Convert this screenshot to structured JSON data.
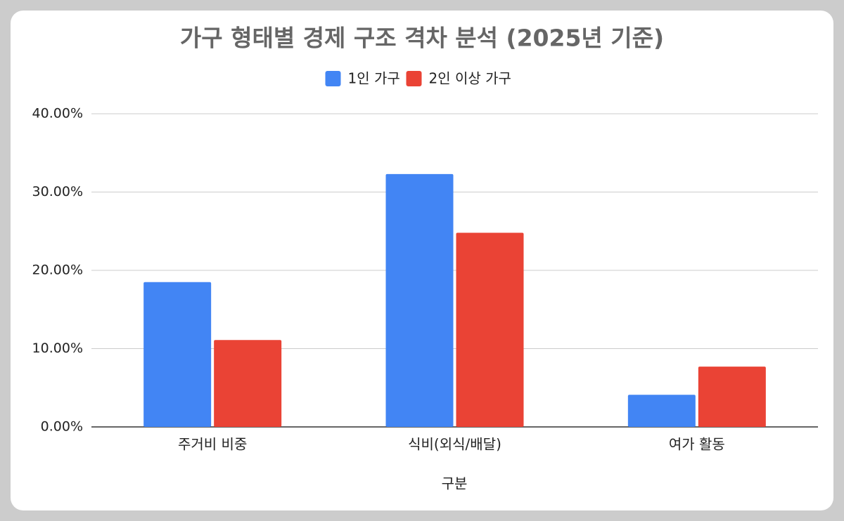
{
  "chart_data": {
    "type": "bar",
    "title": "가구 형태별 경제 구조 격차 분석 (2025년 기준)",
    "x_label": "구분",
    "categories": [
      "주거비 비중",
      "식비(외식/배달)",
      "여가 활동"
    ],
    "series": [
      {
        "name": "1인 가구",
        "color": "#4285f4",
        "values": [
          18.5,
          32.3,
          4.1
        ]
      },
      {
        "name": "2인 이상 가구",
        "color": "#ea4335",
        "values": [
          11.1,
          24.8,
          7.7
        ]
      }
    ],
    "ylim": [
      0,
      40
    ],
    "yticks": [
      {
        "value": 0,
        "label": "0.00%"
      },
      {
        "value": 10,
        "label": "10.00%"
      },
      {
        "value": 20,
        "label": "20.00%"
      },
      {
        "value": 30,
        "label": "30.00%"
      },
      {
        "value": 40,
        "label": "40.00%"
      }
    ],
    "grid": true,
    "legend": "top"
  }
}
